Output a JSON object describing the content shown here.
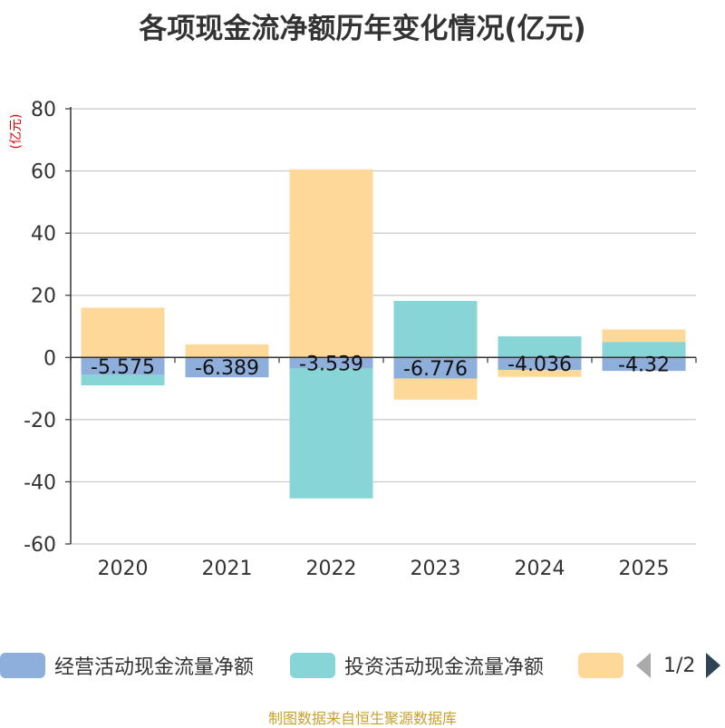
{
  "chart_data": {
    "type": "bar",
    "stacked": true,
    "title": "各项现金流净额历年变化情况(亿元)",
    "ylabel": "(亿元)",
    "xlabel": "",
    "categories": [
      "2020",
      "2021",
      "2022",
      "2023",
      "2024",
      "2025"
    ],
    "ylim": [
      -60,
      80
    ],
    "yticks": [
      80,
      60,
      40,
      20,
      0,
      -20,
      -40,
      -60
    ],
    "series": [
      {
        "name": "经营活动现金流量净额",
        "color": "#8eaedc",
        "values": [
          -5.575,
          -6.389,
          -3.539,
          -6.776,
          -4.036,
          -4.32
        ],
        "labels": [
          "-5.575",
          "-6.389",
          "-3.539",
          "-6.776",
          "-4.036",
          "-4.32"
        ]
      },
      {
        "name": "投资活动现金流量净额",
        "color": "#88d5d8",
        "values": [
          -3.4,
          0,
          -41.8,
          18.2,
          6.8,
          5.0
        ]
      },
      {
        "name": "",
        "color": "#fed899",
        "values": [
          16.0,
          4.2,
          60.5,
          -6.8,
          -2.2,
          4.0
        ]
      }
    ],
    "grid": true,
    "legend_position": "bottom"
  },
  "legend": {
    "items": [
      "经营活动现金流量净额",
      "投资活动现金流量净额",
      ""
    ],
    "page_text": "1/2"
  },
  "footer": "制图数据来自恒生聚源数据库"
}
